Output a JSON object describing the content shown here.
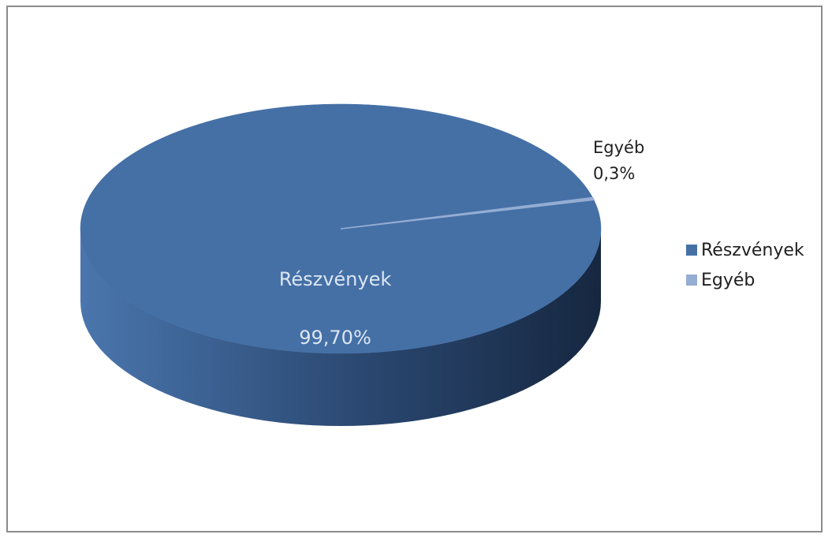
{
  "chart_data": {
    "type": "pie",
    "title": "",
    "style": "3d",
    "categories": [
      "Részvények",
      "Egyéb"
    ],
    "values": [
      99.7,
      0.3
    ],
    "data_labels": [
      {
        "category": "Részvények",
        "value": "99,70%"
      },
      {
        "category": "Egyéb",
        "value": "0,3%"
      }
    ],
    "colors": [
      "#4570a6",
      "#95add3"
    ],
    "legend_position": "right",
    "legend": [
      {
        "label": "Részvények",
        "color": "#4570a6"
      },
      {
        "label": "Egyéb",
        "color": "#95add3"
      }
    ]
  }
}
